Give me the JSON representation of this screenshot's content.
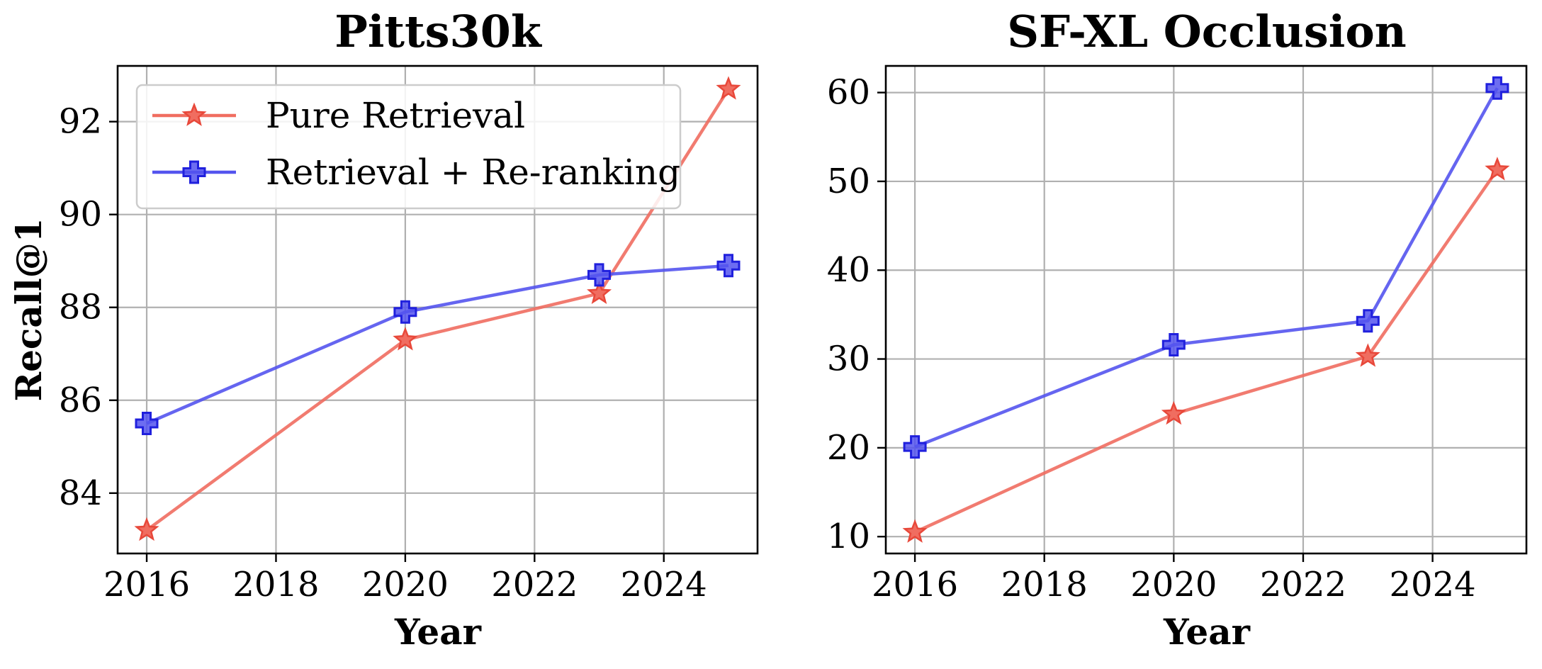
{
  "colors": {
    "pure_retrieval": "#f06d60",
    "pure_retrieval_edge": "#e8483a",
    "reranking": "#5454ee",
    "reranking_edge": "#2020dd"
  },
  "chart_data": [
    {
      "type": "line",
      "title": "Pitts30k",
      "xlabel": "Year",
      "ylabel": "Recall@1",
      "x": [
        2016,
        2020,
        2023,
        2025
      ],
      "xlim": [
        2015.55,
        2025.45
      ],
      "ylim": [
        82.7,
        93.2
      ],
      "xticks": [
        2016,
        2018,
        2020,
        2022,
        2024
      ],
      "yticks": [
        84,
        86,
        88,
        90,
        92
      ],
      "grid": true,
      "legend": {
        "position": "top-left"
      },
      "series": [
        {
          "name": "Pure Retrieval",
          "marker": "star",
          "color": "#f06d60",
          "values": [
            83.2,
            87.3,
            88.3,
            92.7
          ]
        },
        {
          "name": "Retrieval + Re-ranking",
          "marker": "plus",
          "color": "#5454ee",
          "values": [
            85.5,
            87.9,
            88.7,
            88.9
          ]
        }
      ]
    },
    {
      "type": "line",
      "title": "SF-XL Occlusion",
      "xlabel": "Year",
      "ylabel": "",
      "x": [
        2016,
        2020,
        2023,
        2025
      ],
      "xlim": [
        2015.55,
        2025.45
      ],
      "ylim": [
        8.1,
        63.0
      ],
      "xticks": [
        2016,
        2018,
        2020,
        2022,
        2024
      ],
      "yticks": [
        10,
        20,
        30,
        40,
        50,
        60
      ],
      "grid": true,
      "legend": null,
      "series": [
        {
          "name": "Pure Retrieval",
          "marker": "star",
          "color": "#f06d60",
          "values": [
            10.5,
            23.8,
            30.3,
            51.3
          ]
        },
        {
          "name": "Retrieval + Re-ranking",
          "marker": "plus",
          "color": "#5454ee",
          "values": [
            20.1,
            31.6,
            34.3,
            60.5
          ]
        }
      ]
    }
  ]
}
